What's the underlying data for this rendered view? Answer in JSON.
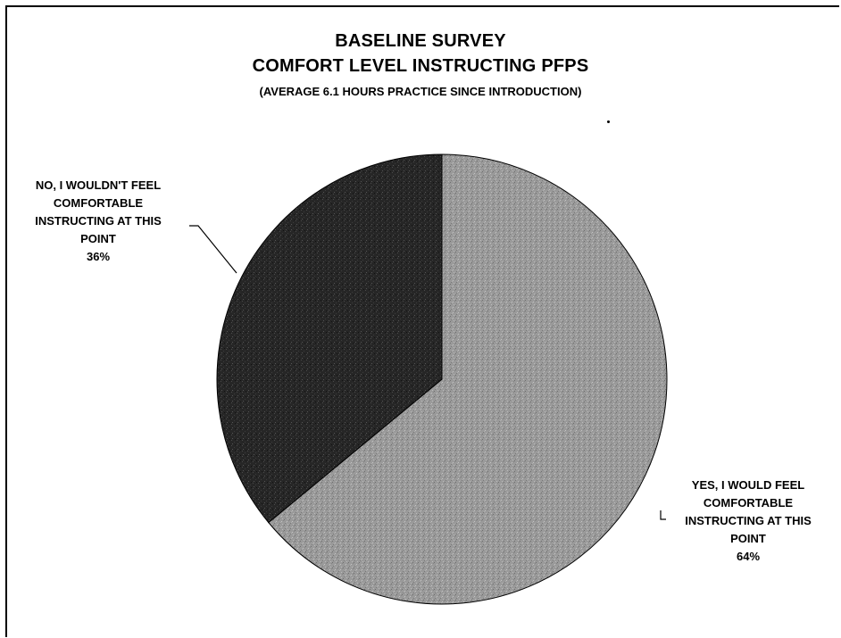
{
  "chart_data": {
    "type": "pie",
    "title_lines": [
      "BASELINE SURVEY",
      "COMFORT LEVEL INSTRUCTING PFPS"
    ],
    "subtitle": "(AVERAGE 6.1 HOURS PRACTICE SINCE INTRODUCTION)",
    "slices": [
      {
        "label_lines": [
          "YES, I WOULD FEEL",
          "COMFORTABLE",
          "INSTRUCTING AT THIS",
          "POINT"
        ],
        "value_label": "64%",
        "value": 64,
        "color": "#9c9c9c"
      },
      {
        "label_lines": [
          "NO, I WOULDN'T FEEL",
          "COMFORTABLE",
          "INSTRUCTING AT THIS",
          "POINT"
        ],
        "value_label": "36%",
        "value": 36,
        "color": "#2a2a2a"
      }
    ],
    "legend": "none"
  }
}
